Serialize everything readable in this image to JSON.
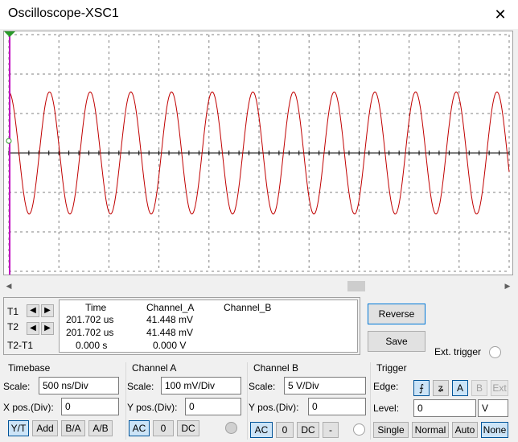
{
  "window": {
    "title": "Oscilloscope-XSC1",
    "close_glyph": "✕"
  },
  "display": {
    "background": "#ffffff",
    "grid_color": "#808080",
    "waveform_color": "#c00000",
    "cursor_color": "#c000c0",
    "trigger_marker_color": "#2a9a2a"
  },
  "cursors": {
    "t1_label": "T1",
    "t2_label": "T2",
    "diff_label": "T2-T1",
    "headers": {
      "time": "Time",
      "channel_a": "Channel_A",
      "channel_b": "Channel_B"
    },
    "rows": [
      {
        "time": "201.702 us",
        "channel_a": "41.448 mV",
        "channel_b": ""
      },
      {
        "time": "201.702 us",
        "channel_a": "41.448 mV",
        "channel_b": ""
      },
      {
        "time": "0.000 s",
        "channel_a": "0.000 V",
        "channel_b": ""
      }
    ]
  },
  "actions": {
    "reverse": "Reverse",
    "save": "Save",
    "ext_trigger": "Ext. trigger"
  },
  "timebase": {
    "title": "Timebase",
    "scale_label": "Scale:",
    "scale_value": "500 ns/Div",
    "xpos_label": "X pos.(Div):",
    "xpos_value": "0",
    "modes": [
      "Y/T",
      "Add",
      "B/A",
      "A/B"
    ]
  },
  "channel_a": {
    "title": "Channel A",
    "scale_label": "Scale:",
    "scale_value": "100 mV/Div",
    "ypos_label": "Y pos.(Div):",
    "ypos_value": "0",
    "coupling": [
      "AC",
      "0",
      "DC"
    ]
  },
  "channel_b": {
    "title": "Channel B",
    "scale_label": "Scale:",
    "scale_value": "5  V/Div",
    "ypos_label": "Y pos.(Div):",
    "ypos_value": "0",
    "coupling": [
      "AC",
      "0",
      "DC",
      "-"
    ]
  },
  "trigger": {
    "title": "Trigger",
    "edge_label": "Edge:",
    "edge_rising_glyph": "⨍",
    "edge_falling_glyph": "ʑ",
    "sources": [
      "A",
      "B",
      "Ext"
    ],
    "level_label": "Level:",
    "level_value": "0",
    "level_unit": "V",
    "modes": [
      "Single",
      "Normal",
      "Auto",
      "None"
    ]
  },
  "waveform": {
    "cycles": 12.3,
    "amplitude_div": 1.55,
    "phase_cycles": 0.75
  }
}
